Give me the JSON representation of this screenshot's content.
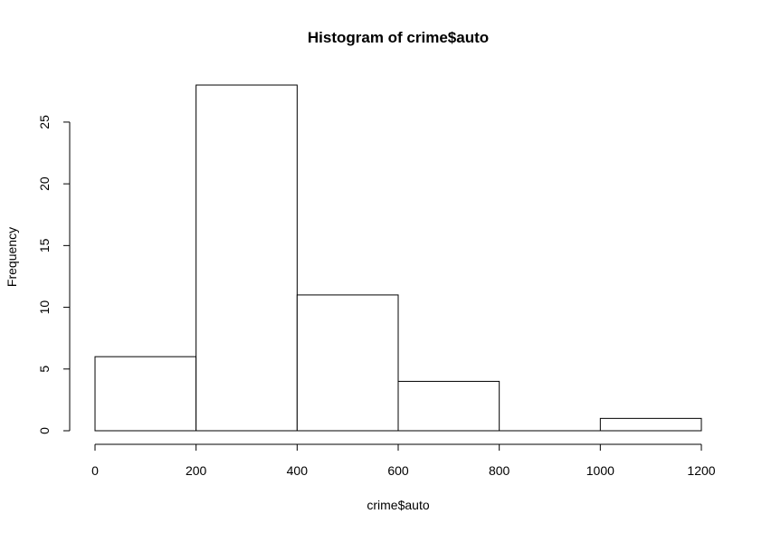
{
  "chart_data": {
    "type": "bar",
    "subtype": "histogram",
    "title": "Histogram of crime$auto",
    "xlabel": "crime$auto",
    "ylabel": "Frequency",
    "bins": [
      {
        "start": 0,
        "end": 200,
        "count": 6
      },
      {
        "start": 200,
        "end": 400,
        "count": 28
      },
      {
        "start": 400,
        "end": 600,
        "count": 11
      },
      {
        "start": 600,
        "end": 800,
        "count": 4
      },
      {
        "start": 800,
        "end": 1000,
        "count": 0
      },
      {
        "start": 1000,
        "end": 1200,
        "count": 1
      }
    ],
    "x_ticks": [
      "0",
      "200",
      "400",
      "600",
      "800",
      "1000",
      "1200"
    ],
    "y_ticks": [
      "0",
      "5",
      "10",
      "15",
      "20",
      "25"
    ],
    "xlim": [
      0,
      1200
    ],
    "ylim": [
      0,
      28
    ],
    "grid": false,
    "legend": "none",
    "colors": {
      "bar_fill": "#ffffff",
      "bar_stroke": "#000000"
    }
  }
}
